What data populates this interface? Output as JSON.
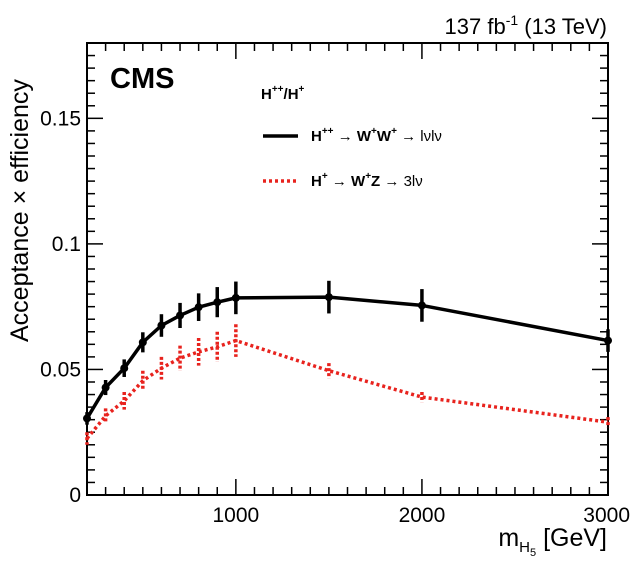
{
  "header": {
    "lumi": "137 fb",
    "lumi_sup": "-1",
    "energy": " (13 TeV)",
    "experiment": "CMS"
  },
  "legend": {
    "header": "H",
    "header_sup1": "++",
    "header_mid": "/H",
    "header_sup2": "+",
    "entry1": {
      "a": "H",
      "a_sup": "++",
      "arrow1": " → ",
      "b": "W",
      "b_sup": "+",
      "c": "W",
      "c_sup": "+",
      "arrow2": " → ",
      "d": "lνlν"
    },
    "entry2": {
      "a": "H",
      "a_sup": "+",
      "arrow1": " → ",
      "b": "W",
      "b_sup": "+",
      "c": "Z",
      "arrow2": " → ",
      "d": "3lν"
    }
  },
  "axes": {
    "ylabel": "Acceptance × efficiency",
    "xlabel_main": "m",
    "xlabel_sub": "H",
    "xlabel_subsub": "5",
    "xlabel_unit": " [GeV]"
  },
  "chart_data": {
    "type": "line",
    "xlim": [
      200,
      3000
    ],
    "ylim": [
      0,
      0.18
    ],
    "x_ticks": [
      1000,
      2000,
      3000
    ],
    "x_tick_labels": [
      "1000",
      "2000",
      "3000"
    ],
    "y_ticks": [
      0,
      0.05,
      0.1,
      0.15
    ],
    "y_tick_labels": [
      "0",
      "0.05",
      "0.1",
      "0.15"
    ],
    "grid": false,
    "legend_position": "top-center",
    "series": [
      {
        "name": "H++ → W+W+ → lνlν",
        "color": "#000000",
        "style": "solid",
        "markers": true,
        "x": [
          200,
          300,
          400,
          500,
          600,
          700,
          800,
          900,
          1000,
          1500,
          2000,
          3000
        ],
        "y": [
          0.0305,
          0.0428,
          0.0505,
          0.0608,
          0.0675,
          0.0715,
          0.0748,
          0.0768,
          0.0785,
          0.0788,
          0.0755,
          0.0615
        ],
        "err": [
          0.0025,
          0.003,
          0.0035,
          0.004,
          0.0045,
          0.005,
          0.0055,
          0.006,
          0.0065,
          0.0065,
          0.0065,
          0.0045
        ]
      },
      {
        "name": "H+ → W+Z → 3lν",
        "color": "#e8231e",
        "style": "dotted",
        "markers": false,
        "x": [
          200,
          300,
          400,
          500,
          600,
          700,
          800,
          900,
          1000,
          1500,
          2000,
          3000
        ],
        "y": [
          0.0225,
          0.0315,
          0.0375,
          0.0455,
          0.0505,
          0.0545,
          0.057,
          0.059,
          0.0615,
          0.0495,
          0.039,
          0.029
        ],
        "err": [
          0.0025,
          0.003,
          0.0035,
          0.004,
          0.0045,
          0.005,
          0.0055,
          0.006,
          0.0065,
          0.003,
          0.002,
          0.002
        ]
      }
    ]
  }
}
